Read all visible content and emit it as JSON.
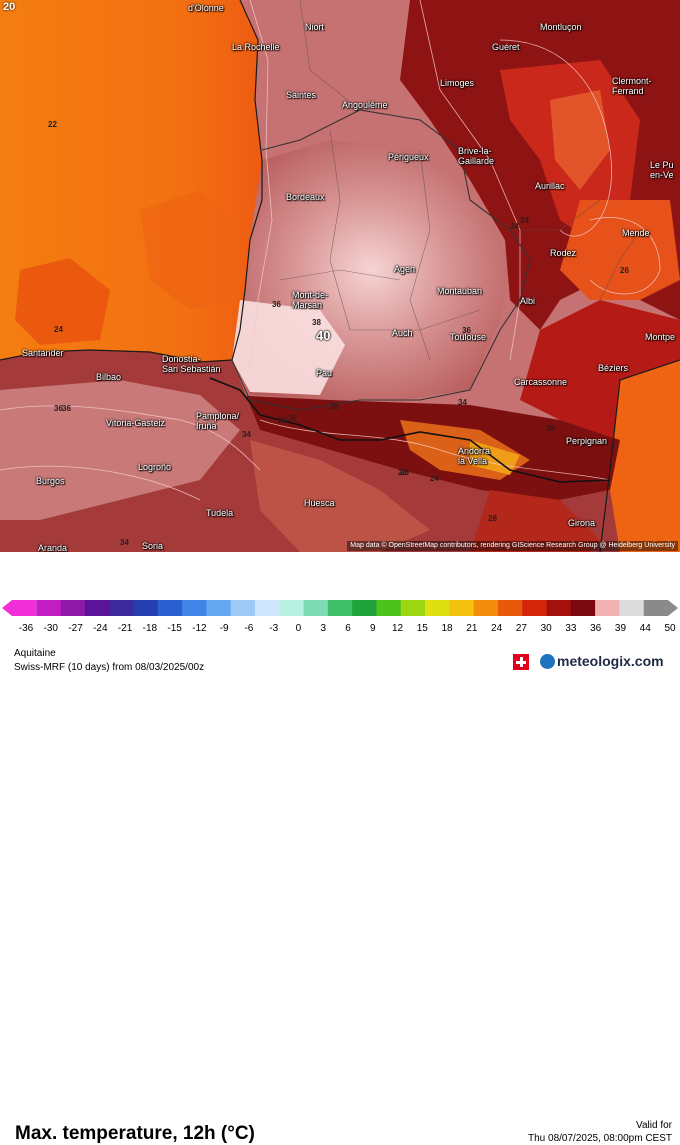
{
  "map": {
    "corner_label": "20",
    "peak_label": "40",
    "attribution": "Map data © OpenStreetMap contributors, rendering GIScience Research Group @ Heidelberg University",
    "cities": [
      {
        "id": "olonne",
        "name": "d'Olonne"
      },
      {
        "id": "niort",
        "name": "Niort"
      },
      {
        "id": "la-rochelle",
        "name": "La Rochelle"
      },
      {
        "id": "montlucon",
        "name": "Montluçon"
      },
      {
        "id": "gueret",
        "name": "Guéret"
      },
      {
        "id": "limoges",
        "name": "Limoges"
      },
      {
        "id": "clermont",
        "name": "Clermont-\nFerrand"
      },
      {
        "id": "saintes",
        "name": "Saintes"
      },
      {
        "id": "angouleme",
        "name": "Angoulême"
      },
      {
        "id": "perigueux",
        "name": "Périgueux"
      },
      {
        "id": "brive",
        "name": "Brive-la-\nGaillarde"
      },
      {
        "id": "aurillac",
        "name": "Aurillac"
      },
      {
        "id": "le-puy",
        "name": "Le Pu\nen-Ve"
      },
      {
        "id": "bordeaux",
        "name": "Bordeaux"
      },
      {
        "id": "mende",
        "name": "Mende"
      },
      {
        "id": "rodez",
        "name": "Rodez"
      },
      {
        "id": "agen",
        "name": "Agen"
      },
      {
        "id": "montauban",
        "name": "Montauban"
      },
      {
        "id": "albi",
        "name": "Albi"
      },
      {
        "id": "mont-de-marsan",
        "name": "Mont-de-\nMarsan"
      },
      {
        "id": "auch",
        "name": "Auch"
      },
      {
        "id": "toulouse",
        "name": "Toulouse"
      },
      {
        "id": "montpellier",
        "name": "Montpe"
      },
      {
        "id": "santander",
        "name": "Santander"
      },
      {
        "id": "donostia",
        "name": "Donostia-\nSan Sebastián"
      },
      {
        "id": "bilbao",
        "name": "Bilbao"
      },
      {
        "id": "pau",
        "name": "Pau"
      },
      {
        "id": "beziers",
        "name": "Béziers"
      },
      {
        "id": "carcassonne",
        "name": "Carcassonne"
      },
      {
        "id": "vitoria",
        "name": "Vitoria-Gasteiz"
      },
      {
        "id": "pamplona",
        "name": "Pamplona/\nIruña"
      },
      {
        "id": "perpignan",
        "name": "Perpignan"
      },
      {
        "id": "andorra",
        "name": "Andorra\nla Vella"
      },
      {
        "id": "logrono",
        "name": "Logroño"
      },
      {
        "id": "burgos",
        "name": "Burgos"
      },
      {
        "id": "tudela",
        "name": "Tudela"
      },
      {
        "id": "huesca",
        "name": "Huesca"
      },
      {
        "id": "girona",
        "name": "Girona"
      },
      {
        "id": "aranda",
        "name": "Aranda"
      },
      {
        "id": "soria",
        "name": "Soria"
      }
    ],
    "isolines": [
      "22",
      "24",
      "36",
      "38",
      "36",
      "34",
      "26",
      "36",
      "36",
      "34",
      "32",
      "28",
      "26",
      "24",
      "28",
      "34",
      "34",
      "34",
      "30",
      "36",
      "26"
    ]
  },
  "legend": {
    "title": "Max. temperature, 12h (°C)",
    "valid_label": "Valid for",
    "valid_value": "Thu 08/07/2025, 08:00pm CEST",
    "ticks": [
      "-36",
      "-30",
      "-27",
      "-24",
      "-21",
      "-18",
      "-15",
      "-12",
      "-9",
      "-6",
      "-3",
      "0",
      "3",
      "6",
      "9",
      "12",
      "15",
      "18",
      "21",
      "24",
      "27",
      "30",
      "33",
      "36",
      "39",
      "44",
      "50"
    ],
    "tick_values": [
      -36,
      -30,
      -27,
      -24,
      -21,
      -18,
      -15,
      -12,
      -9,
      -6,
      -3,
      0,
      3,
      6,
      9,
      12,
      15,
      18,
      21,
      24,
      27,
      30,
      33,
      36,
      39,
      44,
      50
    ],
    "colors": [
      "#f22ed8",
      "#c21ec4",
      "#8f1aa8",
      "#5a1498",
      "#3c2a9c",
      "#263fb0",
      "#2a5fd0",
      "#3f86e6",
      "#66a8f0",
      "#9ccaf6",
      "#cde6fb",
      "#b8f0e0",
      "#7ddcb4",
      "#3fbf6a",
      "#1fa33a",
      "#4cc21d",
      "#9bd611",
      "#dfe00f",
      "#f3c20e",
      "#f38d0c",
      "#e85a0a",
      "#d2250a",
      "#a4100e",
      "#7a0810",
      "#f2b3b3",
      "#dcdcdc",
      "#8a8a8a"
    ]
  },
  "footer": {
    "region": "Aquitaine",
    "model": "Swiss-MRF (10 days) from 08/03/2025/00z",
    "brand": "meteologix.com"
  }
}
